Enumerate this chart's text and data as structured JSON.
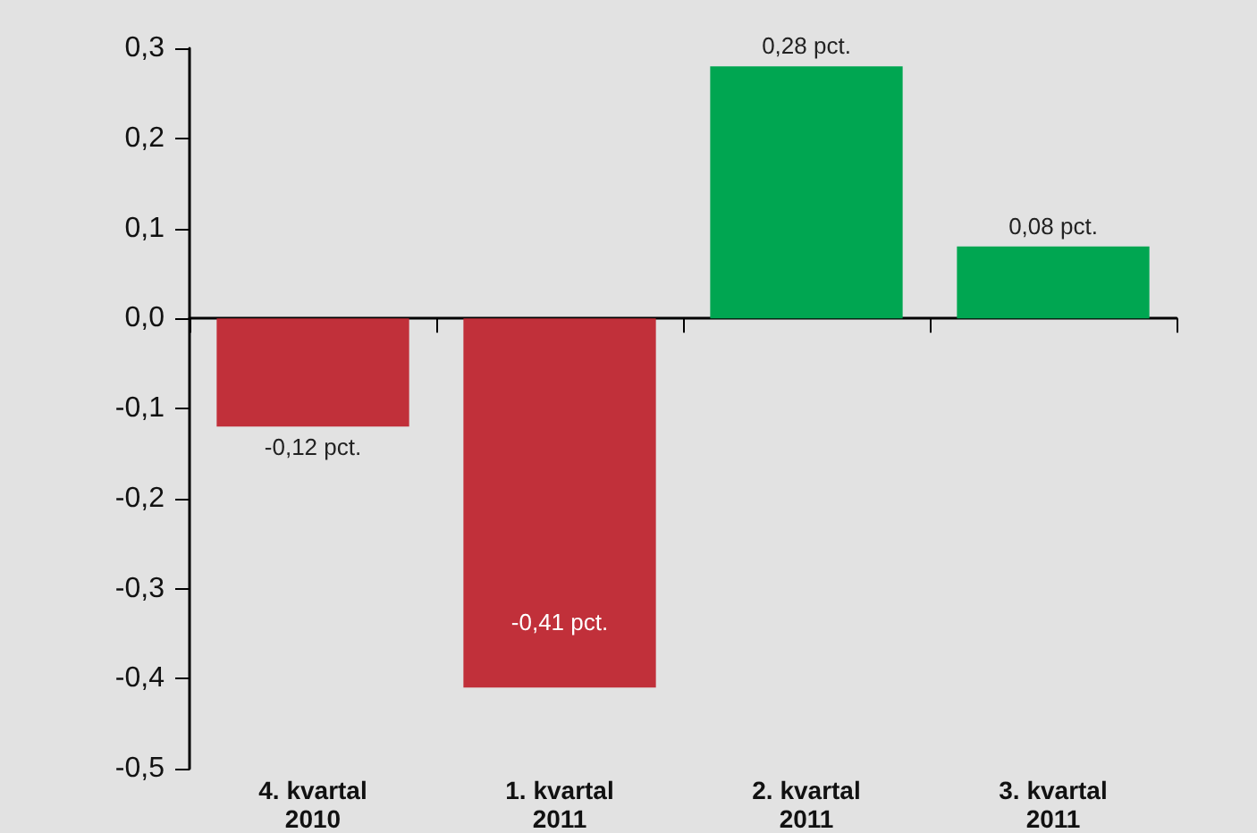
{
  "chart_data": {
    "type": "bar",
    "categories": [
      "4. kvartal\n2010",
      "1. kvartal\n2011",
      "2. kvartal\n2011",
      "3. kvartal\n2011"
    ],
    "values": [
      -0.12,
      -0.41,
      0.28,
      0.08
    ],
    "colors": [
      "#c1303a",
      "#c1303a",
      "#00a651",
      "#00a651"
    ],
    "value_labels": [
      "-0,12 pct.",
      "-0,41 pct.",
      "0,28 pct.",
      "0,08 pct."
    ],
    "ylim": [
      -0.5,
      0.3
    ],
    "yticks": [
      {
        "value": -0.5,
        "label": "-0,5"
      },
      {
        "value": -0.4,
        "label": "-0,4"
      },
      {
        "value": -0.3,
        "label": "-0,3"
      },
      {
        "value": -0.2,
        "label": "-0,2"
      },
      {
        "value": -0.1,
        "label": "-0,1"
      },
      {
        "value": 0,
        "label": "0,0"
      },
      {
        "value": 0.1,
        "label": "0,1"
      },
      {
        "value": 0.2,
        "label": "0,2"
      },
      {
        "value": 0.3,
        "label": "0,3"
      }
    ]
  }
}
